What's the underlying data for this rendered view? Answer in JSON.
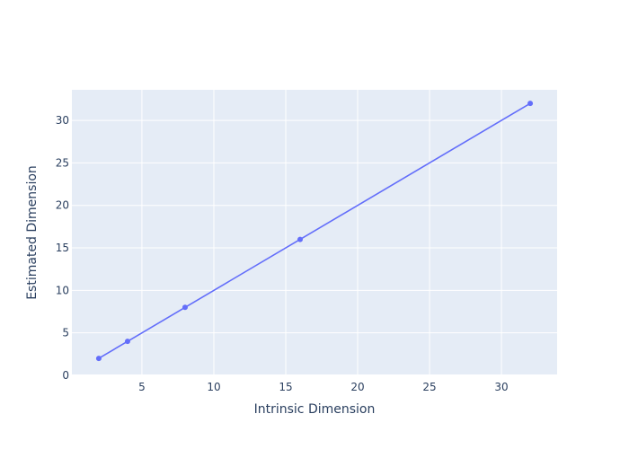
{
  "chart_data": {
    "type": "line",
    "title": "",
    "xlabel": "Intrinsic Dimension",
    "ylabel": "Estimated Dimension",
    "x": [
      2,
      4,
      8,
      16,
      32
    ],
    "series": [
      {
        "values": [
          2,
          4,
          8,
          16,
          32
        ]
      }
    ],
    "xlim": [
      0.13,
      33.87
    ],
    "ylim": [
      0,
      33.6
    ],
    "xticks": [
      5,
      10,
      15,
      20,
      25,
      30
    ],
    "yticks": [
      0,
      5,
      10,
      15,
      20,
      25,
      30
    ],
    "grid": true,
    "colors": {
      "line": "#636efa",
      "plot_bg": "#e5ecf6",
      "grid": "#ffffff",
      "text": "#2a3f5f"
    }
  }
}
